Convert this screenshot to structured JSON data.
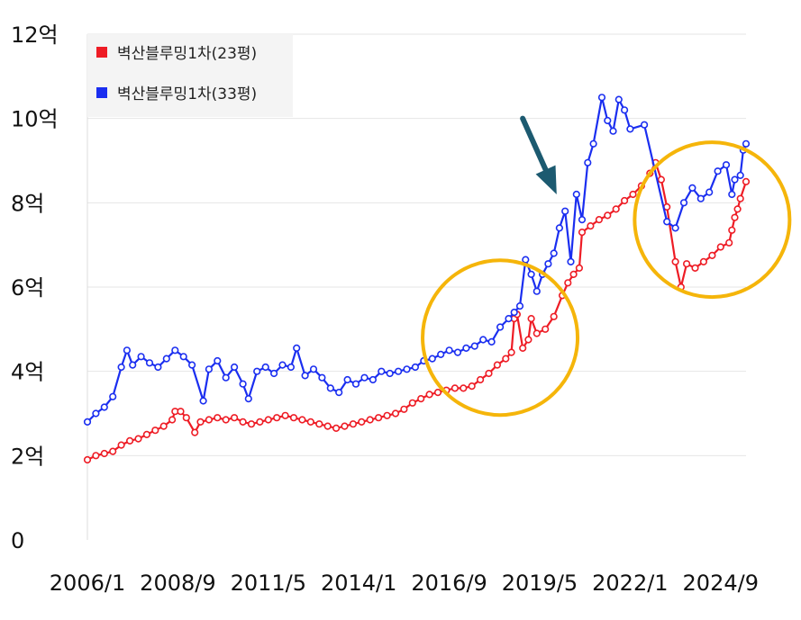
{
  "chart_data": {
    "type": "line",
    "title": "",
    "xlabel": "",
    "ylabel": "",
    "ylim": [
      0,
      12
    ],
    "y_ticks": [
      {
        "value": 0,
        "label": "0"
      },
      {
        "value": 2,
        "label": "2억"
      },
      {
        "value": 4,
        "label": "4억"
      },
      {
        "value": 6,
        "label": "6억"
      },
      {
        "value": 8,
        "label": "8억"
      },
      {
        "value": 10,
        "label": "10억"
      },
      {
        "value": 12,
        "label": "12억"
      }
    ],
    "xlim": [
      "2006-01",
      "2025-06"
    ],
    "x_ticks": [
      "2006/1",
      "2008/9",
      "2011/5",
      "2014/1",
      "2016/9",
      "2019/5",
      "2022/1",
      "2024/9"
    ],
    "grid": "horizontal",
    "legend_position": "top-left",
    "series": [
      {
        "name": "벽산블루밍1차(23평)",
        "color": "#ee1c25",
        "points": [
          [
            "2006-01",
            1.9
          ],
          [
            "2006-04",
            2.0
          ],
          [
            "2006-07",
            2.05
          ],
          [
            "2006-10",
            2.1
          ],
          [
            "2007-01",
            2.25
          ],
          [
            "2007-04",
            2.35
          ],
          [
            "2007-07",
            2.4
          ],
          [
            "2007-10",
            2.5
          ],
          [
            "2008-01",
            2.6
          ],
          [
            "2008-04",
            2.7
          ],
          [
            "2008-07",
            2.85
          ],
          [
            "2008-08",
            3.05
          ],
          [
            "2008-10",
            3.05
          ],
          [
            "2008-12",
            2.9
          ],
          [
            "2009-03",
            2.55
          ],
          [
            "2009-05",
            2.8
          ],
          [
            "2009-08",
            2.85
          ],
          [
            "2009-11",
            2.9
          ],
          [
            "2010-02",
            2.85
          ],
          [
            "2010-05",
            2.9
          ],
          [
            "2010-08",
            2.8
          ],
          [
            "2010-11",
            2.75
          ],
          [
            "2011-02",
            2.8
          ],
          [
            "2011-05",
            2.85
          ],
          [
            "2011-08",
            2.9
          ],
          [
            "2011-11",
            2.95
          ],
          [
            "2012-02",
            2.9
          ],
          [
            "2012-05",
            2.85
          ],
          [
            "2012-08",
            2.8
          ],
          [
            "2012-11",
            2.75
          ],
          [
            "2013-02",
            2.7
          ],
          [
            "2013-05",
            2.65
          ],
          [
            "2013-08",
            2.7
          ],
          [
            "2013-11",
            2.75
          ],
          [
            "2014-02",
            2.8
          ],
          [
            "2014-05",
            2.85
          ],
          [
            "2014-08",
            2.9
          ],
          [
            "2014-11",
            2.95
          ],
          [
            "2015-02",
            3.0
          ],
          [
            "2015-05",
            3.1
          ],
          [
            "2015-08",
            3.25
          ],
          [
            "2015-11",
            3.35
          ],
          [
            "2016-02",
            3.45
          ],
          [
            "2016-05",
            3.5
          ],
          [
            "2016-08",
            3.55
          ],
          [
            "2016-11",
            3.6
          ],
          [
            "2017-02",
            3.6
          ],
          [
            "2017-05",
            3.65
          ],
          [
            "2017-08",
            3.8
          ],
          [
            "2017-11",
            3.95
          ],
          [
            "2018-02",
            4.15
          ],
          [
            "2018-05",
            4.3
          ],
          [
            "2018-07",
            4.45
          ],
          [
            "2018-08",
            5.25
          ],
          [
            "2018-09",
            5.35
          ],
          [
            "2018-11",
            4.55
          ],
          [
            "2019-01",
            4.75
          ],
          [
            "2019-02",
            5.25
          ],
          [
            "2019-04",
            4.9
          ],
          [
            "2019-07",
            5.0
          ],
          [
            "2019-10",
            5.3
          ],
          [
            "2020-01",
            5.8
          ],
          [
            "2020-03",
            6.1
          ],
          [
            "2020-05",
            6.3
          ],
          [
            "2020-07",
            6.45
          ],
          [
            "2020-08",
            7.3
          ],
          [
            "2020-11",
            7.45
          ],
          [
            "2021-02",
            7.6
          ],
          [
            "2021-05",
            7.7
          ],
          [
            "2021-08",
            7.85
          ],
          [
            "2021-11",
            8.05
          ],
          [
            "2022-02",
            8.2
          ],
          [
            "2022-05",
            8.4
          ],
          [
            "2022-08",
            8.7
          ],
          [
            "2022-10",
            8.95
          ],
          [
            "2022-12",
            8.55
          ],
          [
            "2023-02",
            7.9
          ],
          [
            "2023-05",
            6.6
          ],
          [
            "2023-07",
            6.0
          ],
          [
            "2023-09",
            6.55
          ],
          [
            "2023-12",
            6.45
          ],
          [
            "2024-03",
            6.6
          ],
          [
            "2024-06",
            6.75
          ],
          [
            "2024-09",
            6.95
          ],
          [
            "2024-12",
            7.05
          ],
          [
            "2025-01",
            7.35
          ],
          [
            "2025-02",
            7.65
          ],
          [
            "2025-03",
            7.85
          ],
          [
            "2025-04",
            8.1
          ],
          [
            "2025-06",
            8.5
          ]
        ]
      },
      {
        "name": "벽산블루밍1차(33평)",
        "color": "#1a2ef0",
        "points": [
          [
            "2006-01",
            2.8
          ],
          [
            "2006-04",
            3.0
          ],
          [
            "2006-07",
            3.15
          ],
          [
            "2006-10",
            3.4
          ],
          [
            "2007-01",
            4.1
          ],
          [
            "2007-03",
            4.5
          ],
          [
            "2007-05",
            4.15
          ],
          [
            "2007-08",
            4.35
          ],
          [
            "2007-11",
            4.2
          ],
          [
            "2008-02",
            4.1
          ],
          [
            "2008-05",
            4.3
          ],
          [
            "2008-08",
            4.5
          ],
          [
            "2008-11",
            4.35
          ],
          [
            "2009-02",
            4.15
          ],
          [
            "2009-06",
            3.3
          ],
          [
            "2009-08",
            4.05
          ],
          [
            "2009-11",
            4.25
          ],
          [
            "2010-02",
            3.85
          ],
          [
            "2010-05",
            4.1
          ],
          [
            "2010-08",
            3.7
          ],
          [
            "2010-10",
            3.35
          ],
          [
            "2011-01",
            4.0
          ],
          [
            "2011-04",
            4.1
          ],
          [
            "2011-07",
            3.95
          ],
          [
            "2011-10",
            4.15
          ],
          [
            "2012-01",
            4.1
          ],
          [
            "2012-03",
            4.55
          ],
          [
            "2012-06",
            3.9
          ],
          [
            "2012-09",
            4.05
          ],
          [
            "2012-12",
            3.85
          ],
          [
            "2013-03",
            3.6
          ],
          [
            "2013-06",
            3.5
          ],
          [
            "2013-09",
            3.8
          ],
          [
            "2013-12",
            3.7
          ],
          [
            "2014-03",
            3.85
          ],
          [
            "2014-06",
            3.8
          ],
          [
            "2014-09",
            4.0
          ],
          [
            "2014-12",
            3.95
          ],
          [
            "2015-03",
            4.0
          ],
          [
            "2015-06",
            4.05
          ],
          [
            "2015-09",
            4.1
          ],
          [
            "2015-12",
            4.25
          ],
          [
            "2016-03",
            4.3
          ],
          [
            "2016-06",
            4.4
          ],
          [
            "2016-09",
            4.5
          ],
          [
            "2016-12",
            4.45
          ],
          [
            "2017-03",
            4.55
          ],
          [
            "2017-06",
            4.6
          ],
          [
            "2017-09",
            4.75
          ],
          [
            "2017-12",
            4.7
          ],
          [
            "2018-03",
            5.05
          ],
          [
            "2018-06",
            5.25
          ],
          [
            "2018-08",
            5.4
          ],
          [
            "2018-10",
            5.55
          ],
          [
            "2018-12",
            6.65
          ],
          [
            "2019-02",
            6.3
          ],
          [
            "2019-04",
            5.9
          ],
          [
            "2019-06",
            6.3
          ],
          [
            "2019-08",
            6.55
          ],
          [
            "2019-10",
            6.8
          ],
          [
            "2019-12",
            7.4
          ],
          [
            "2020-02",
            7.8
          ],
          [
            "2020-04",
            6.6
          ],
          [
            "2020-06",
            8.2
          ],
          [
            "2020-08",
            7.6
          ],
          [
            "2020-10",
            8.95
          ],
          [
            "2020-12",
            9.4
          ],
          [
            "2021-03",
            10.5
          ],
          [
            "2021-05",
            9.95
          ],
          [
            "2021-07",
            9.7
          ],
          [
            "2021-09",
            10.45
          ],
          [
            "2021-11",
            10.2
          ],
          [
            "2022-01",
            9.75
          ],
          [
            "2022-06",
            9.85
          ],
          [
            "2023-02",
            7.55
          ],
          [
            "2023-05",
            7.4
          ],
          [
            "2023-08",
            8.0
          ],
          [
            "2023-11",
            8.35
          ],
          [
            "2024-02",
            8.1
          ],
          [
            "2024-05",
            8.25
          ],
          [
            "2024-08",
            8.75
          ],
          [
            "2024-11",
            8.9
          ],
          [
            "2025-01",
            8.2
          ],
          [
            "2025-02",
            8.55
          ],
          [
            "2025-04",
            8.65
          ],
          [
            "2025-05",
            9.25
          ],
          [
            "2025-06",
            9.4
          ]
        ]
      }
    ],
    "annotations": [
      {
        "type": "circle",
        "color": "#f5b50a",
        "around": [
          "2018-03",
          4.8
        ]
      },
      {
        "type": "circle",
        "color": "#f5b50a",
        "around": [
          "2024-06",
          7.6
        ]
      },
      {
        "type": "arrow",
        "color": "#1c5a70",
        "from": [
          "2018-11",
          10.0
        ],
        "to": [
          "2019-11",
          8.2
        ]
      }
    ]
  }
}
